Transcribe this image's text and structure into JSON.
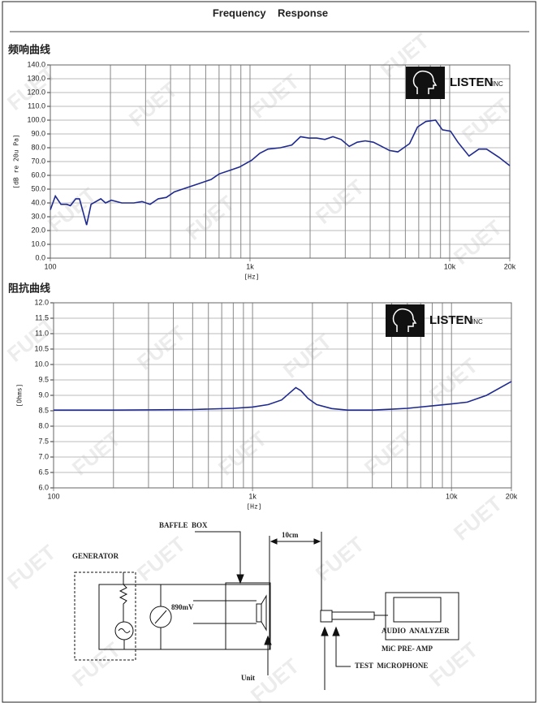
{
  "header": {
    "title": "Frequency    Response"
  },
  "watermark": "FUET",
  "chart_data": [
    {
      "type": "line",
      "title": "频响曲线",
      "x_label": "[Hz]",
      "y_label": "[dB re 20u Pa]",
      "logo_text": "LISTEN",
      "logo_suffix": "INC",
      "log_x": true,
      "grid": true,
      "xlim": [
        100,
        20000
      ],
      "ylim": [
        0,
        140
      ],
      "xticks": [
        100,
        {
          "value": 1000,
          "label": "1k"
        },
        {
          "value": 10000,
          "label": "10k"
        },
        {
          "value": 20000,
          "label": "20k"
        }
      ],
      "xgrid": [
        200,
        300,
        400,
        500,
        600,
        700,
        800,
        900,
        2000,
        3000,
        4000,
        5000,
        6000,
        7000,
        8000,
        9000
      ],
      "yticks": [
        {
          "value": 0,
          "label": "0.0"
        },
        {
          "value": 10,
          "label": "10.0"
        },
        {
          "value": 20,
          "label": "20.0"
        },
        {
          "value": 30,
          "label": "30.0"
        },
        {
          "value": 40,
          "label": "40.0"
        },
        {
          "value": 50,
          "label": "50.0"
        },
        {
          "value": 60,
          "label": "60.0"
        },
        {
          "value": 70,
          "label": "70.0"
        },
        {
          "value": 80,
          "label": "80.0"
        },
        {
          "value": 90,
          "label": "90.0"
        },
        {
          "value": 100,
          "label": "100.0"
        },
        {
          "value": 110,
          "label": "110.0"
        },
        {
          "value": 120,
          "label": "120.0"
        },
        {
          "value": 130,
          "label": "130.0"
        },
        {
          "value": 140,
          "label": "140.0"
        }
      ],
      "x": [
        100,
        106,
        113,
        121,
        126,
        134,
        140,
        152,
        160,
        179,
        189,
        202,
        228,
        262,
        288,
        316,
        347,
        381,
        418,
        482,
        554,
        638,
        700,
        806,
        886,
        1020,
        1120,
        1230,
        1420,
        1620,
        1790,
        1970,
        2160,
        2370,
        2600,
        2860,
        3140,
        3440,
        3780,
        4150,
        4560,
        5000,
        5500,
        6300,
        6900,
        7600,
        8500,
        9200,
        10100,
        11000,
        12500,
        14000,
        15300,
        17700,
        20000
      ],
      "series": [
        {
          "color": "#1f2a8f",
          "values": [
            35,
            45,
            39,
            39,
            38,
            43,
            43,
            24,
            39,
            43,
            40,
            42,
            40,
            40,
            41,
            39,
            43,
            44,
            48,
            51,
            54,
            57,
            61,
            64,
            66,
            71,
            76,
            79,
            80,
            82,
            88,
            87,
            87,
            86,
            88,
            86,
            81,
            84,
            85,
            84,
            81,
            78,
            77,
            83,
            95,
            99,
            100,
            93,
            92,
            84,
            74,
            79,
            79,
            73,
            67
          ]
        }
      ]
    },
    {
      "type": "line",
      "title": "阻抗曲线",
      "x_label": "[Hz]",
      "y_label": "[Ohms]",
      "logo_text": "LISTEN",
      "logo_suffix": "INC",
      "log_x": true,
      "grid": true,
      "xlim": [
        100,
        20000
      ],
      "ylim": [
        6,
        12
      ],
      "xticks": [
        100,
        {
          "value": 1000,
          "label": "1k"
        },
        {
          "value": 10000,
          "label": "10k"
        },
        {
          "value": 20000,
          "label": "20k"
        }
      ],
      "xgrid": [
        200,
        300,
        400,
        500,
        600,
        700,
        800,
        900,
        2000,
        3000,
        4000,
        5000,
        6000,
        7000,
        8000,
        9000
      ],
      "yticks": [
        {
          "value": 6,
          "label": "6.0"
        },
        6.5,
        {
          "value": 7,
          "label": "7.0"
        },
        7.5,
        {
          "value": 8,
          "label": "8.0"
        },
        8.5,
        {
          "value": 9,
          "label": "9.0"
        },
        9.5,
        {
          "value": 10,
          "label": "10.0"
        },
        10.5,
        {
          "value": 11,
          "label": "11.0"
        },
        11.5,
        {
          "value": 12,
          "label": "12.0"
        }
      ],
      "x": [
        100,
        200,
        500,
        800,
        1000,
        1200,
        1400,
        1550,
        1650,
        1750,
        1900,
        2100,
        2500,
        3000,
        4000,
        5000,
        6000,
        8000,
        10000,
        12000,
        15000,
        20000
      ],
      "series": [
        {
          "color": "#1f2a8f",
          "values": [
            8.52,
            8.52,
            8.54,
            8.58,
            8.62,
            8.7,
            8.85,
            9.1,
            9.25,
            9.15,
            8.9,
            8.7,
            8.57,
            8.52,
            8.52,
            8.55,
            8.58,
            8.66,
            8.72,
            8.78,
            9.0,
            9.45
          ]
        }
      ]
    }
  ],
  "diagram": {
    "labels": [
      "BAFFLE  BOX",
      "10cm",
      "GENERATOR",
      "890mV",
      "AUDIO  ANALYZER",
      "MiC PRE- AMP",
      "TEST  MiCROPHONE",
      "Unit"
    ]
  }
}
